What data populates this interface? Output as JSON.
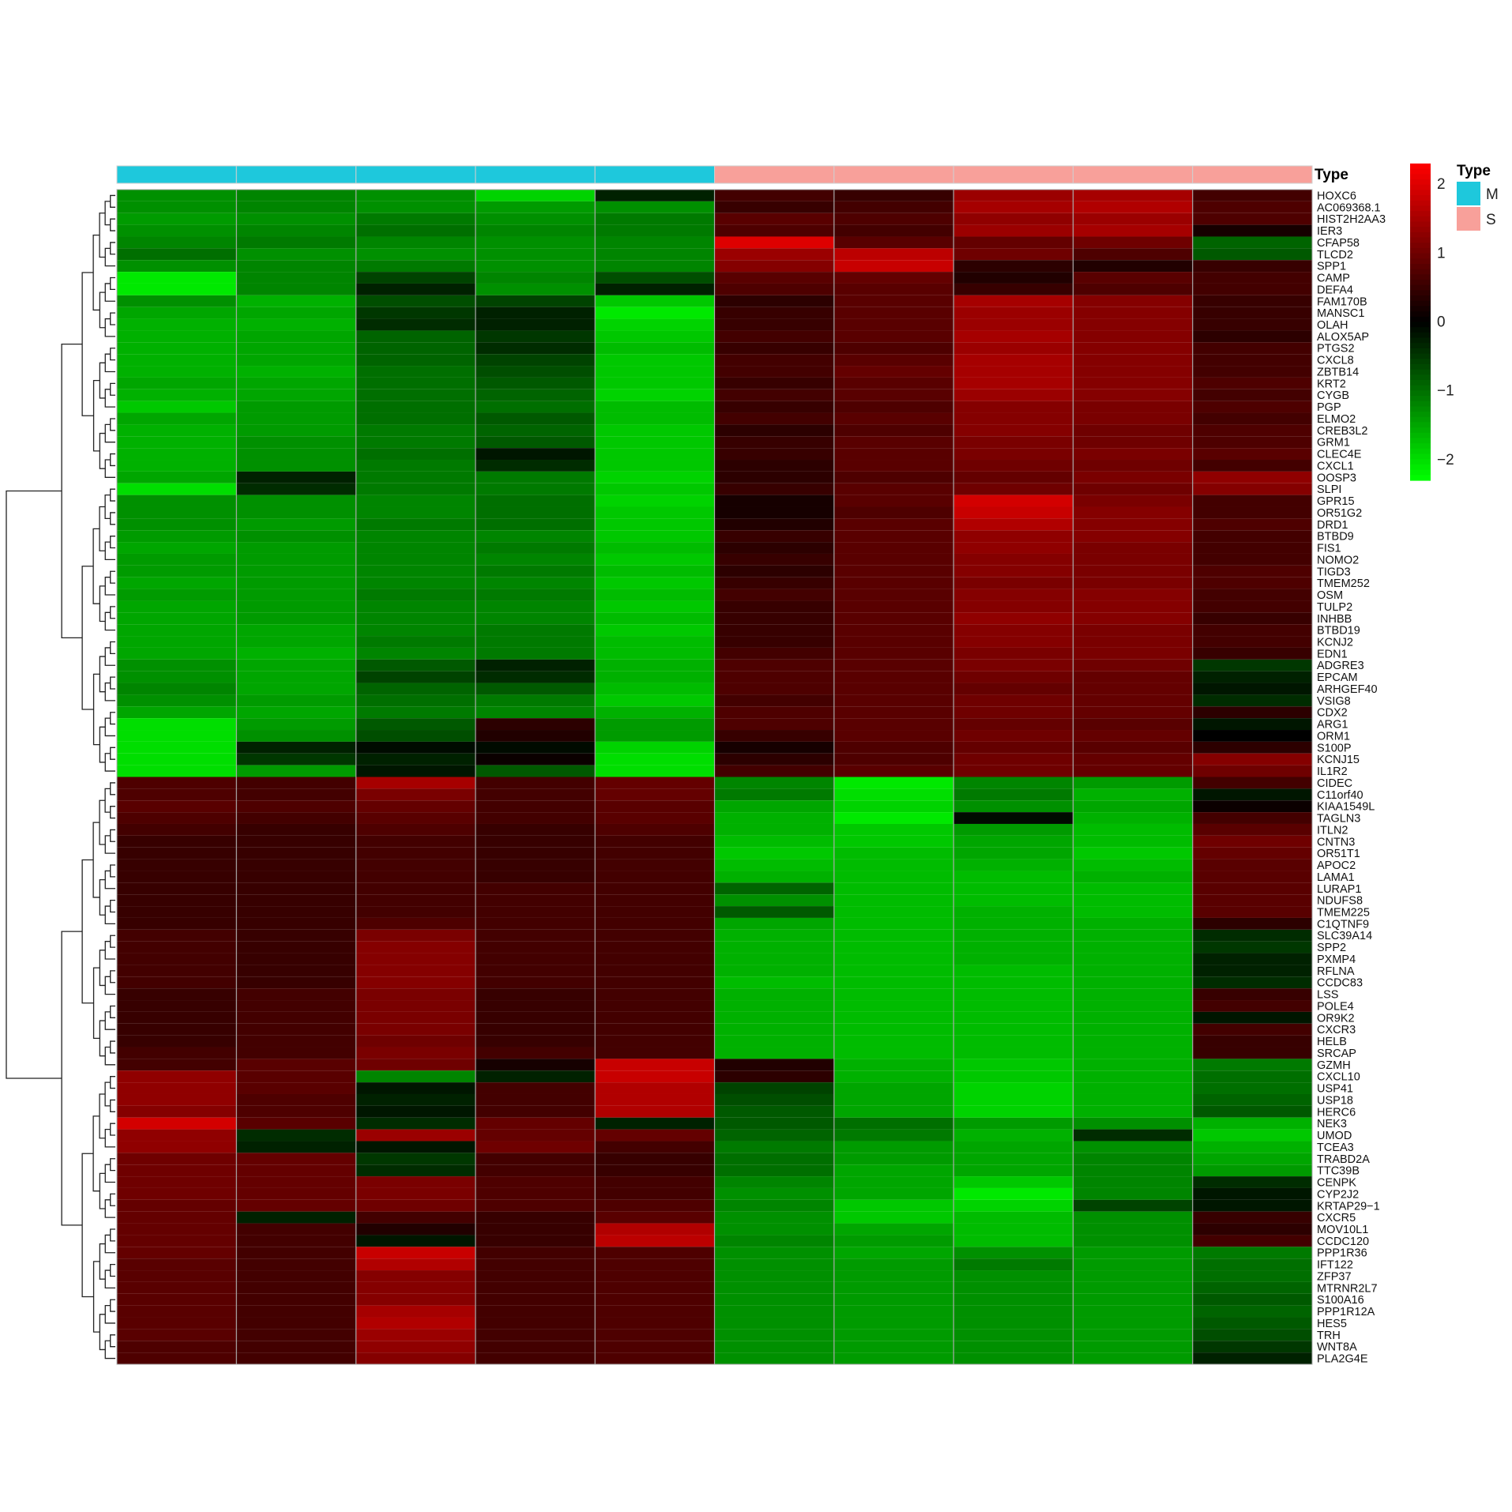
{
  "chart_data": {
    "type": "heatmap",
    "annotation_label": "Type",
    "legend": {
      "title": "Type",
      "entries": [
        {
          "label": "M",
          "color": "#1ec8dc"
        },
        {
          "label": "S",
          "color": "#f8a09a"
        }
      ]
    },
    "colorbar": {
      "ticks": [
        "2",
        "1",
        "0",
        "−1",
        "−2"
      ],
      "tick_values": [
        2,
        1,
        0,
        -1,
        -2
      ],
      "range": [
        -2.3,
        2.3
      ],
      "colors": {
        "low": "#00ff00",
        "mid": "#000000",
        "high": "#ff0000"
      }
    },
    "columns": [
      {
        "type": "M"
      },
      {
        "type": "M"
      },
      {
        "type": "M"
      },
      {
        "type": "M"
      },
      {
        "type": "M"
      },
      {
        "type": "S"
      },
      {
        "type": "S"
      },
      {
        "type": "S"
      },
      {
        "type": "S"
      },
      {
        "type": "S"
      }
    ],
    "rows": [
      "HOXC6",
      "AC069368.1",
      "HIST2H2AA3",
      "IER3",
      "CFAP58",
      "TLCD2",
      "SPP1",
      "CAMP",
      "DEFA4",
      "FAM170B",
      "MANSC1",
      "OLAH",
      "ALOX5AP",
      "PTGS2",
      "CXCL8",
      "ZBTB14",
      "KRT2",
      "CYGB",
      "PGP",
      "ELMO2",
      "CREB3L2",
      "GRM1",
      "CLEC4E",
      "CXCL1",
      "OOSP3",
      "SLPI",
      "GPR15",
      "OR51G2",
      "DRD1",
      "BTBD9",
      "FIS1",
      "NOMO2",
      "TIGD3",
      "TMEM252",
      "OSM",
      "TULP2",
      "INHBB",
      "BTBD19",
      "KCNJ2",
      "EDN1",
      "ADGRE3",
      "EPCAM",
      "ARHGEF40",
      "VSIG8",
      "CDX2",
      "ARG1",
      "ORM1",
      "S100P",
      "KCNJ15",
      "IL1R2",
      "CIDEC",
      "C11orf40",
      "KIAA1549L",
      "TAGLN3",
      "ITLN2",
      "CNTN3",
      "OR51T1",
      "APOC2",
      "LAMA1",
      "LURAP1",
      "NDUFS8",
      "TMEM225",
      "C1QTNF9",
      "SLC39A14",
      "SPP2",
      "PXMP4",
      "RFLNA",
      "CCDC83",
      "LSS",
      "POLE4",
      "OR9K2",
      "CXCR3",
      "HELB",
      "SRCAP",
      "GZMH",
      "CXCL10",
      "USP41",
      "USP18",
      "HERC6",
      "NEK3",
      "UMOD",
      "TCEA3",
      "TRABD2A",
      "TTC39B",
      "CENPK",
      "CYP2J2",
      "KRTAP29−1",
      "CXCR5",
      "MOV10L1",
      "CCDC120",
      "PPP1R36",
      "IFT122",
      "ZFP37",
      "MTRNR2L7",
      "S100A16",
      "PPP1R12A",
      "HES5",
      "TRH",
      "WNT8A",
      "PLA2G4E"
    ],
    "values": [
      [
        -1.3,
        -1.2,
        -1.3,
        -1.9,
        -0.3,
        0.6,
        0.5,
        1.4,
        1.5,
        0.6
      ],
      [
        -1.3,
        -1.2,
        -1.3,
        -1.4,
        -1.3,
        0.5,
        0.6,
        1.5,
        1.6,
        0.7
      ],
      [
        -1.4,
        -1.3,
        -1.1,
        -1.3,
        -1.1,
        0.8,
        0.7,
        1.3,
        1.4,
        0.7
      ],
      [
        -1.3,
        -1.2,
        -1.0,
        -1.2,
        -1.1,
        0.7,
        0.6,
        1.4,
        1.5,
        0.2
      ],
      [
        -1.2,
        -1.1,
        -1.2,
        -1.3,
        -1.2,
        2.0,
        0.8,
        0.9,
        1.0,
        -0.9
      ],
      [
        -1.0,
        -1.3,
        -1.3,
        -1.3,
        -1.2,
        1.4,
        1.7,
        1.0,
        0.7,
        -0.8
      ],
      [
        -1.3,
        -1.2,
        -1.1,
        -1.3,
        -1.2,
        1.2,
        1.8,
        0.4,
        0.3,
        0.5
      ],
      [
        -2.1,
        -1.2,
        -0.6,
        -1.2,
        -0.7,
        0.8,
        0.9,
        0.3,
        0.8,
        0.6
      ],
      [
        -2.1,
        -1.2,
        -0.3,
        -1.3,
        -0.3,
        0.7,
        0.8,
        0.5,
        0.7,
        0.6
      ],
      [
        -1.3,
        -1.6,
        -0.7,
        -0.6,
        -1.8,
        0.4,
        0.8,
        1.5,
        1.2,
        0.5
      ],
      [
        -1.5,
        -1.5,
        -0.5,
        -0.3,
        -2.1,
        0.5,
        0.8,
        1.4,
        1.2,
        0.5
      ],
      [
        -1.6,
        -1.6,
        -0.4,
        -0.3,
        -1.9,
        0.5,
        0.8,
        1.4,
        1.2,
        0.5
      ],
      [
        -1.6,
        -1.5,
        -0.9,
        -0.5,
        -1.8,
        0.6,
        0.8,
        1.5,
        1.2,
        0.4
      ],
      [
        -1.6,
        -1.5,
        -0.9,
        -0.4,
        -1.7,
        0.5,
        0.7,
        1.4,
        1.2,
        0.6
      ],
      [
        -1.6,
        -1.5,
        -0.9,
        -0.6,
        -1.8,
        0.6,
        0.8,
        1.5,
        1.2,
        0.6
      ],
      [
        -1.6,
        -1.6,
        -1.0,
        -0.7,
        -1.8,
        0.6,
        0.9,
        1.5,
        1.2,
        0.6
      ],
      [
        -1.5,
        -1.5,
        -1.0,
        -0.8,
        -1.8,
        0.5,
        0.8,
        1.5,
        1.2,
        0.7
      ],
      [
        -1.6,
        -1.5,
        -1.0,
        -0.9,
        -1.9,
        0.6,
        0.8,
        1.4,
        1.2,
        0.6
      ],
      [
        -1.8,
        -1.4,
        -1.0,
        -1.0,
        -1.7,
        0.5,
        0.7,
        1.2,
        1.1,
        0.7
      ],
      [
        -1.5,
        -1.4,
        -1.0,
        -0.8,
        -1.7,
        0.6,
        0.8,
        1.2,
        1.1,
        0.6
      ],
      [
        -1.6,
        -1.4,
        -1.1,
        -0.9,
        -1.8,
        0.4,
        0.7,
        1.2,
        1.0,
        0.7
      ],
      [
        -1.6,
        -1.3,
        -1.1,
        -0.8,
        -1.8,
        0.5,
        0.8,
        1.1,
        1.0,
        0.7
      ],
      [
        -1.6,
        -1.3,
        -1.0,
        -0.2,
        -1.8,
        0.5,
        0.8,
        1.1,
        1.1,
        0.8
      ],
      [
        -1.6,
        -1.3,
        -1.1,
        -0.4,
        -1.8,
        0.4,
        0.8,
        1.0,
        1.0,
        0.6
      ],
      [
        -1.5,
        -0.3,
        -1.1,
        -1.1,
        -1.9,
        0.4,
        0.7,
        0.9,
        1.1,
        1.3
      ],
      [
        -2.0,
        -0.4,
        -1.1,
        -1.1,
        -1.8,
        0.5,
        0.8,
        1.0,
        1.0,
        1.2
      ],
      [
        -1.3,
        -1.3,
        -1.2,
        -1.0,
        -1.9,
        0.2,
        0.8,
        1.9,
        1.1,
        0.6
      ],
      [
        -1.3,
        -1.3,
        -1.2,
        -1.0,
        -1.8,
        0.2,
        0.7,
        1.8,
        1.2,
        0.6
      ],
      [
        -1.3,
        -1.4,
        -1.1,
        -1.0,
        -1.8,
        0.3,
        0.8,
        1.6,
        1.2,
        0.7
      ],
      [
        -1.4,
        -1.3,
        -1.2,
        -1.2,
        -1.8,
        0.5,
        0.8,
        1.3,
        1.2,
        0.6
      ],
      [
        -1.5,
        -1.4,
        -1.2,
        -1.1,
        -1.7,
        0.4,
        0.8,
        1.3,
        1.1,
        0.6
      ],
      [
        -1.4,
        -1.4,
        -1.2,
        -1.2,
        -1.8,
        0.5,
        0.8,
        1.2,
        1.1,
        0.6
      ],
      [
        -1.4,
        -1.4,
        -1.2,
        -1.1,
        -1.7,
        0.4,
        0.8,
        1.2,
        1.1,
        0.7
      ],
      [
        -1.5,
        -1.4,
        -1.2,
        -1.2,
        -1.8,
        0.5,
        0.8,
        1.1,
        1.1,
        0.7
      ],
      [
        -1.4,
        -1.4,
        -1.1,
        -1.1,
        -1.7,
        0.6,
        0.8,
        1.2,
        1.2,
        0.6
      ],
      [
        -1.5,
        -1.4,
        -1.2,
        -1.2,
        -1.8,
        0.5,
        0.8,
        1.2,
        1.2,
        0.6
      ],
      [
        -1.5,
        -1.4,
        -1.2,
        -1.2,
        -1.7,
        0.5,
        0.8,
        1.3,
        1.2,
        0.5
      ],
      [
        -1.5,
        -1.5,
        -1.2,
        -1.1,
        -1.8,
        0.5,
        0.8,
        1.2,
        1.1,
        0.6
      ],
      [
        -1.5,
        -1.5,
        -1.1,
        -1.1,
        -1.7,
        0.5,
        0.8,
        1.2,
        1.1,
        0.6
      ],
      [
        -1.5,
        -1.6,
        -1.2,
        -1.1,
        -1.7,
        0.6,
        0.8,
        1.1,
        1.1,
        0.5
      ],
      [
        -1.3,
        -1.5,
        -0.8,
        -0.3,
        -1.6,
        0.7,
        0.8,
        1.1,
        1.0,
        -0.5
      ],
      [
        -1.3,
        -1.5,
        -0.6,
        -0.4,
        -1.6,
        0.7,
        0.8,
        1.0,
        0.9,
        -0.3
      ],
      [
        -1.2,
        -1.5,
        -0.9,
        -0.8,
        -1.7,
        0.7,
        0.8,
        0.9,
        0.9,
        -0.2
      ],
      [
        -1.3,
        -1.4,
        -1.0,
        -1.1,
        -1.8,
        0.6,
        0.8,
        1.0,
        0.9,
        -0.4
      ],
      [
        -1.5,
        -1.5,
        -1.1,
        -1.2,
        -1.6,
        0.7,
        0.8,
        1.0,
        0.9,
        0.4
      ],
      [
        -2.0,
        -1.4,
        -0.8,
        0.4,
        -1.4,
        0.7,
        0.8,
        0.9,
        0.8,
        -0.2
      ],
      [
        -2.0,
        -1.3,
        -0.7,
        0.3,
        -1.4,
        0.5,
        0.8,
        1.0,
        0.9,
        0.0
      ],
      [
        -2.0,
        -0.3,
        -0.1,
        -0.1,
        -1.9,
        0.2,
        0.7,
        0.9,
        0.8,
        0.4
      ],
      [
        -2.0,
        -0.5,
        -0.3,
        0.1,
        -2.0,
        0.4,
        0.7,
        1.0,
        0.9,
        1.2
      ],
      [
        -2.0,
        -1.4,
        -0.2,
        -0.8,
        -2.0,
        0.6,
        0.8,
        1.0,
        0.9,
        1.0
      ],
      [
        0.7,
        0.6,
        1.5,
        0.6,
        0.9,
        -1.2,
        -2.1,
        -1.2,
        -1.4,
        0.6
      ],
      [
        0.7,
        0.6,
        1.1,
        0.6,
        0.9,
        -1.1,
        -2.0,
        -1.1,
        -1.6,
        -0.2
      ],
      [
        0.8,
        0.7,
        0.9,
        0.6,
        0.8,
        -1.5,
        -1.9,
        -1.3,
        -1.5,
        0.1
      ],
      [
        0.7,
        0.6,
        0.8,
        0.6,
        0.8,
        -1.6,
        -2.1,
        -0.1,
        -1.6,
        0.6
      ],
      [
        0.6,
        0.5,
        0.7,
        0.5,
        0.7,
        -1.6,
        -1.8,
        -1.4,
        -1.7,
        0.8
      ],
      [
        0.5,
        0.5,
        0.6,
        0.5,
        0.6,
        -1.7,
        -1.8,
        -1.5,
        -1.7,
        1.0
      ],
      [
        0.5,
        0.5,
        0.6,
        0.5,
        0.6,
        -1.8,
        -1.7,
        -1.5,
        -1.8,
        0.9
      ],
      [
        0.5,
        0.5,
        0.6,
        0.5,
        0.6,
        -1.7,
        -1.7,
        -1.6,
        -1.7,
        0.8
      ],
      [
        0.5,
        0.5,
        0.6,
        0.5,
        0.6,
        -1.6,
        -1.7,
        -1.7,
        -1.6,
        0.8
      ],
      [
        0.5,
        0.5,
        0.6,
        0.6,
        0.6,
        -0.9,
        -1.7,
        -1.7,
        -1.7,
        0.8
      ],
      [
        0.5,
        0.5,
        0.6,
        0.6,
        0.6,
        -1.3,
        -1.7,
        -1.7,
        -1.7,
        0.8
      ],
      [
        0.5,
        0.5,
        0.6,
        0.6,
        0.6,
        -0.8,
        -1.7,
        -1.6,
        -1.7,
        0.8
      ],
      [
        0.5,
        0.5,
        0.7,
        0.6,
        0.6,
        -1.5,
        -1.7,
        -1.6,
        -1.6,
        0.4
      ],
      [
        0.6,
        0.5,
        1.1,
        0.6,
        0.6,
        -1.6,
        -1.7,
        -1.6,
        -1.6,
        -0.4
      ],
      [
        0.6,
        0.5,
        1.2,
        0.6,
        0.6,
        -1.6,
        -1.7,
        -1.6,
        -1.6,
        -0.5
      ],
      [
        0.6,
        0.5,
        1.2,
        0.6,
        0.6,
        -1.6,
        -1.7,
        -1.6,
        -1.6,
        -0.3
      ],
      [
        0.6,
        0.5,
        1.2,
        0.6,
        0.6,
        -1.6,
        -1.7,
        -1.7,
        -1.6,
        -0.3
      ],
      [
        0.6,
        0.5,
        1.2,
        0.6,
        0.6,
        -1.7,
        -1.7,
        -1.7,
        -1.6,
        -0.4
      ],
      [
        0.5,
        0.6,
        1.1,
        0.5,
        0.6,
        -1.6,
        -1.7,
        -1.7,
        -1.6,
        0.5
      ],
      [
        0.5,
        0.6,
        1.1,
        0.5,
        0.6,
        -1.6,
        -1.7,
        -1.7,
        -1.6,
        0.6
      ],
      [
        0.5,
        0.6,
        1.1,
        0.5,
        0.6,
        -1.6,
        -1.7,
        -1.7,
        -1.6,
        -0.2
      ],
      [
        0.5,
        0.6,
        1.1,
        0.5,
        0.6,
        -1.6,
        -1.7,
        -1.7,
        -1.6,
        0.6
      ],
      [
        0.5,
        0.6,
        1.0,
        0.5,
        0.6,
        -1.6,
        -1.7,
        -1.7,
        -1.6,
        0.5
      ],
      [
        0.6,
        0.6,
        1.1,
        0.6,
        0.6,
        -1.6,
        -1.7,
        -1.7,
        -1.6,
        0.5
      ],
      [
        0.6,
        0.8,
        1.0,
        0.2,
        1.8,
        0.3,
        -1.6,
        -1.8,
        -1.6,
        -1.1
      ],
      [
        1.3,
        0.8,
        -1.2,
        -0.3,
        1.8,
        0.4,
        -1.6,
        -1.8,
        -1.6,
        -1.0
      ],
      [
        1.3,
        0.8,
        -0.2,
        0.6,
        1.6,
        -0.6,
        -1.5,
        -1.9,
        -1.6,
        -1.0
      ],
      [
        1.3,
        0.7,
        -0.3,
        0.6,
        1.6,
        -0.7,
        -1.5,
        -1.9,
        -1.6,
        -0.9
      ],
      [
        1.2,
        0.7,
        -0.2,
        0.6,
        1.6,
        -0.8,
        -1.5,
        -1.9,
        -1.6,
        -0.8
      ],
      [
        1.9,
        0.8,
        -0.4,
        0.9,
        -0.3,
        -0.8,
        -1.0,
        -1.4,
        -1.3,
        -1.6
      ],
      [
        1.3,
        -0.4,
        1.4,
        0.9,
        0.9,
        -0.9,
        -1.1,
        -1.6,
        -0.4,
        -1.8
      ],
      [
        1.3,
        -0.3,
        -0.2,
        1.0,
        0.6,
        -1.1,
        -1.4,
        -1.5,
        -1.3,
        -1.6
      ],
      [
        1.0,
        0.9,
        -0.5,
        0.6,
        0.5,
        -1.0,
        -1.4,
        -1.5,
        -1.2,
        -1.5
      ],
      [
        1.0,
        0.9,
        -0.4,
        0.6,
        0.5,
        -1.0,
        -1.5,
        -1.5,
        -1.2,
        -1.4
      ],
      [
        1.0,
        0.9,
        1.1,
        0.7,
        0.6,
        -1.2,
        -1.5,
        -1.8,
        -1.2,
        -0.4
      ],
      [
        1.0,
        0.9,
        1.1,
        0.7,
        0.6,
        -1.3,
        -1.5,
        -2.1,
        -1.2,
        -0.2
      ],
      [
        0.9,
        0.9,
        1.0,
        0.7,
        0.7,
        -1.2,
        -1.8,
        -1.9,
        -0.6,
        -0.2
      ],
      [
        0.9,
        -0.3,
        0.6,
        0.5,
        0.8,
        -1.3,
        -1.8,
        -1.7,
        -1.3,
        0.5
      ],
      [
        0.9,
        0.6,
        0.3,
        0.5,
        1.6,
        -1.3,
        -1.5,
        -1.7,
        -1.3,
        0.4
      ],
      [
        0.9,
        0.6,
        -0.2,
        0.5,
        1.7,
        -1.2,
        -1.4,
        -1.7,
        -1.3,
        0.6
      ],
      [
        0.9,
        0.6,
        1.8,
        0.6,
        0.7,
        -1.3,
        -1.5,
        -1.3,
        -1.4,
        -1.1
      ],
      [
        0.8,
        0.6,
        1.6,
        0.6,
        0.7,
        -1.3,
        -1.4,
        -1.1,
        -1.4,
        -1.0
      ],
      [
        0.8,
        0.6,
        1.2,
        0.6,
        0.7,
        -1.3,
        -1.4,
        -1.3,
        -1.4,
        -1.0
      ],
      [
        0.8,
        0.6,
        1.2,
        0.6,
        0.7,
        -1.3,
        -1.4,
        -1.3,
        -1.4,
        -0.9
      ],
      [
        0.8,
        0.6,
        1.2,
        0.6,
        0.7,
        -1.3,
        -1.4,
        -1.3,
        -1.4,
        -0.8
      ],
      [
        0.8,
        0.6,
        1.5,
        0.6,
        0.7,
        -1.3,
        -1.4,
        -1.3,
        -1.4,
        -0.9
      ],
      [
        0.8,
        0.6,
        1.6,
        0.6,
        0.7,
        -1.3,
        -1.4,
        -1.3,
        -1.4,
        -0.8
      ],
      [
        0.8,
        0.6,
        1.4,
        0.6,
        0.7,
        -1.3,
        -1.4,
        -1.3,
        -1.4,
        -0.7
      ],
      [
        0.7,
        0.6,
        1.3,
        0.6,
        0.7,
        -1.3,
        -1.4,
        -1.3,
        -1.4,
        -0.5
      ],
      [
        0.7,
        0.6,
        1.2,
        0.6,
        0.7,
        -1.3,
        -1.4,
        -1.3,
        -1.4,
        -0.3
      ]
    ]
  }
}
